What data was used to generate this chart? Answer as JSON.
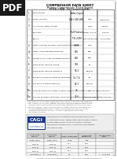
{
  "title1": "COMPRESSOR DATA SHEET",
  "title2": "Rotary Compressor: Fixed Speed",
  "title3": "MODEL DATA - For Compressed Air",
  "main_rows": [
    [
      "1",
      "Manufacturer",
      "Atlas Copco",
      "",
      ""
    ],
    [
      "2",
      "Model Number",
      "GA+ 500-400",
      "Date",
      "12/06/2021"
    ],
    [
      "3",
      "Air Cooled / Water Cooled",
      "",
      "Drive",
      "Electric"
    ],
    [
      "",
      "Enclosure",
      "Full Feature",
      "Power Source",
      "500 HP"
    ],
    [
      "",
      "Control",
      "TXi 2250",
      "Inlet Range psig",
      "n/a (Fixed)"
    ],
    [
      "4",
      "Rated Capacity at Rated Load Operating Pressure **",
      "1,006",
      "acfm",
      ""
    ],
    [
      "4a",
      "Rated Load Operating Pressure *",
      "100",
      "psig",
      ""
    ],
    [
      "5",
      "Maximum Full Flow Operating Pressure *",
      "100",
      "psig",
      ""
    ],
    [
      "6",
      "Drive Motor Nominal Rating",
      "350",
      "hp",
      ""
    ],
    [
      "7",
      "Drive Motor Nominal Efficiency",
      "96.2",
      "percent",
      ""
    ],
    [
      "8",
      "Fan Motor Nominal Rating (if applicable)",
      "2x 7.4",
      "hp",
      ""
    ],
    [
      "9",
      "Fan Motor Nominal Efficiency",
      "88.7",
      "percent",
      ""
    ],
    [
      "10a",
      "Total Package Input Power at Rated Capacity and Rated Load Operating Pressure *",
      "40",
      "kW",
      ""
    ],
    [
      "11a",
      "Specific Package Input Power at Rated Capacity and Rated Load Operating Pressure *",
      "20.6",
      "kW/100 cfm",
      ""
    ]
  ],
  "perf_headers": [
    "% Full Load\nCapacity",
    "% Full Load\nCapacity",
    "Subset (Flow) Rate",
    "% Full Load\nCompressor",
    "Package Input\nPower"
  ],
  "perf_data": [
    [
      "100% (Full)",
      "100% (Full)",
      "1,006",
      "100",
      ""
    ],
    [
      "75% ††",
      "75% ††",
      "71.1",
      "91.8",
      ""
    ],
    [
      "50% ††",
      "50% ††",
      "60.1",
      "91.8",
      ""
    ],
    [
      "25% ††",
      "25% ††",
      "30.1",
      "91.8",
      ""
    ],
    [
      "Unloaded ††",
      "Unloaded ††",
      "4.5",
      "91.8",
      "1 - 1000 cfm"
    ]
  ],
  "notes": [
    "* Reference to the discharge pressure point of the compression process in accordance with",
    "  ISO 1217: 2009(E), Annex C (selected) does not account for drive system",
    "  efficiency. CAGI assumes no loss at load rates at the load points.",
    "** Reference is specified at ISO 1217, Annex E as required by the standard.",
    "†† Fan power is included."
  ],
  "footnote": "The data contained herein represents actual performance data provided by the manufacturer.",
  "pdf_bg": "#1a1a1a",
  "doc_bg": "#ffffff",
  "border_color": "#999999",
  "header_gray": "#d0d0d0",
  "cagi_blue": "#1a3a8a",
  "row_alt": "#f5f5f5"
}
